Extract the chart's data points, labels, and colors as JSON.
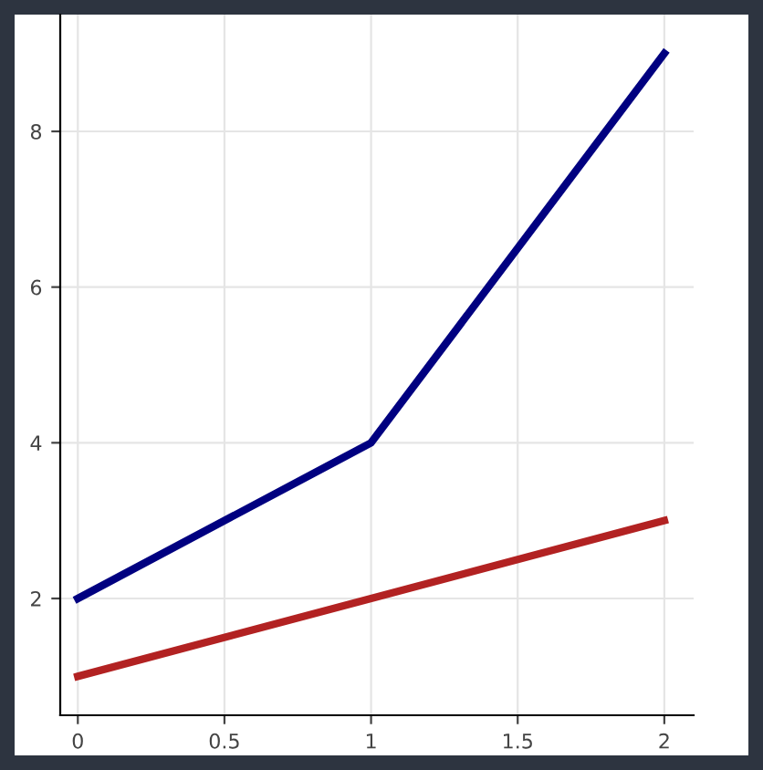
{
  "chart_data": {
    "type": "line",
    "x": [
      0,
      1,
      2
    ],
    "series": [
      {
        "color": "#000080",
        "values": [
          2,
          4,
          9
        ]
      },
      {
        "color": "#b22222",
        "values": [
          1,
          2,
          3
        ]
      }
    ],
    "xlim": [
      -0.06,
      2.1
    ],
    "ylim": [
      0.5,
      9.5
    ],
    "xticks": [
      0,
      0.5,
      1,
      1.5,
      2
    ],
    "yticks": [
      2,
      4,
      6,
      8
    ],
    "grid": true,
    "line_style": "solid"
  }
}
